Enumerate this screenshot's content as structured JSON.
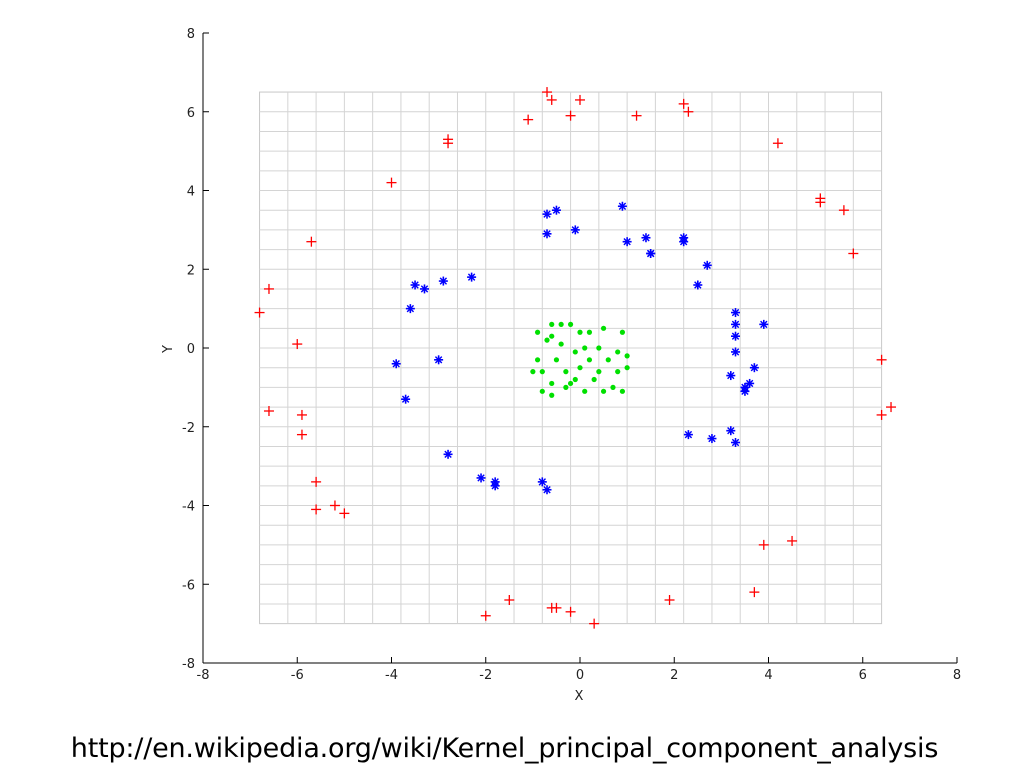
{
  "chart_data": {
    "type": "scatter",
    "title": "",
    "xlabel": "X",
    "ylabel": "Y",
    "xlim": [
      -8,
      8
    ],
    "ylim": [
      -8,
      8
    ],
    "xticks": [
      -8,
      -6,
      -4,
      -2,
      0,
      2,
      4,
      6,
      8
    ],
    "yticks": [
      -8,
      -6,
      -4,
      -2,
      0,
      2,
      4,
      6,
      8
    ],
    "grid": true,
    "grid_region_x": [
      -6.8,
      6.4
    ],
    "grid_region_y": [
      -7.0,
      6.5
    ],
    "series": [
      {
        "color": "#ff0000",
        "marker": "plus",
        "points": [
          [
            -0.7,
            6.5
          ],
          [
            -0.6,
            6.3
          ],
          [
            0.0,
            6.3
          ],
          [
            -1.1,
            5.8
          ],
          [
            -0.2,
            5.9
          ],
          [
            1.2,
            5.9
          ],
          [
            2.2,
            6.2
          ],
          [
            2.3,
            6.0
          ],
          [
            -2.8,
            5.3
          ],
          [
            -2.8,
            5.2
          ],
          [
            4.2,
            5.2
          ],
          [
            -4.0,
            4.2
          ],
          [
            5.1,
            3.7
          ],
          [
            5.1,
            3.8
          ],
          [
            5.6,
            3.5
          ],
          [
            -5.7,
            2.7
          ],
          [
            5.8,
            2.4
          ],
          [
            -6.6,
            1.5
          ],
          [
            -6.8,
            0.9
          ],
          [
            -6.0,
            0.1
          ],
          [
            6.4,
            -0.3
          ],
          [
            -6.6,
            -1.6
          ],
          [
            -5.9,
            -1.7
          ],
          [
            -5.9,
            -2.2
          ],
          [
            6.4,
            -1.7
          ],
          [
            6.6,
            -1.5
          ],
          [
            -5.6,
            -3.4
          ],
          [
            -5.6,
            -4.1
          ],
          [
            -5.2,
            -4.0
          ],
          [
            -5.0,
            -4.2
          ],
          [
            4.5,
            -4.9
          ],
          [
            3.9,
            -5.0
          ],
          [
            3.7,
            -6.2
          ],
          [
            -1.5,
            -6.4
          ],
          [
            1.9,
            -6.4
          ],
          [
            -0.6,
            -6.6
          ],
          [
            -0.5,
            -6.6
          ],
          [
            -0.2,
            -6.7
          ],
          [
            -2.0,
            -6.8
          ],
          [
            0.3,
            -7.0
          ]
        ]
      },
      {
        "color": "#0000ff",
        "marker": "star",
        "points": [
          [
            -0.5,
            3.5
          ],
          [
            -0.7,
            3.4
          ],
          [
            -0.7,
            2.9
          ],
          [
            -0.1,
            3.0
          ],
          [
            0.9,
            3.6
          ],
          [
            1.0,
            2.7
          ],
          [
            1.4,
            2.8
          ],
          [
            1.5,
            2.4
          ],
          [
            1.5,
            2.4
          ],
          [
            2.2,
            2.8
          ],
          [
            2.2,
            2.7
          ],
          [
            2.7,
            2.1
          ],
          [
            2.5,
            1.6
          ],
          [
            -2.3,
            1.8
          ],
          [
            -2.9,
            1.7
          ],
          [
            -3.5,
            1.6
          ],
          [
            -3.3,
            1.5
          ],
          [
            -3.6,
            1.0
          ],
          [
            -3.0,
            -0.3
          ],
          [
            -3.9,
            -0.4
          ],
          [
            -3.7,
            -1.3
          ],
          [
            3.3,
            0.9
          ],
          [
            3.3,
            0.6
          ],
          [
            3.9,
            0.6
          ],
          [
            3.3,
            0.3
          ],
          [
            3.3,
            -0.1
          ],
          [
            3.7,
            -0.5
          ],
          [
            3.2,
            -0.7
          ],
          [
            3.6,
            -0.9
          ],
          [
            3.5,
            -1.0
          ],
          [
            3.5,
            -1.1
          ],
          [
            3.2,
            -2.1
          ],
          [
            3.3,
            -2.4
          ],
          [
            2.8,
            -2.3
          ],
          [
            2.3,
            -2.2
          ],
          [
            -2.8,
            -2.7
          ],
          [
            -2.1,
            -3.3
          ],
          [
            -1.8,
            -3.4
          ],
          [
            -1.8,
            -3.5
          ],
          [
            -0.8,
            -3.4
          ],
          [
            -0.7,
            -3.6
          ]
        ]
      },
      {
        "color": "#00e000",
        "marker": "dot",
        "points": [
          [
            -0.6,
            0.6
          ],
          [
            -0.4,
            0.6
          ],
          [
            -0.2,
            0.6
          ],
          [
            0.5,
            0.5
          ],
          [
            0.9,
            0.4
          ],
          [
            -0.9,
            0.4
          ],
          [
            -0.6,
            0.3
          ],
          [
            0.0,
            0.4
          ],
          [
            0.2,
            0.4
          ],
          [
            -0.7,
            0.2
          ],
          [
            -0.4,
            0.1
          ],
          [
            0.1,
            0.0
          ],
          [
            0.4,
            0.0
          ],
          [
            -0.1,
            -0.1
          ],
          [
            0.8,
            -0.1
          ],
          [
            1.0,
            -0.2
          ],
          [
            -0.9,
            -0.3
          ],
          [
            -0.5,
            -0.3
          ],
          [
            0.2,
            -0.3
          ],
          [
            0.6,
            -0.3
          ],
          [
            -1.0,
            -0.6
          ],
          [
            -0.8,
            -0.6
          ],
          [
            -0.3,
            -0.6
          ],
          [
            0.0,
            -0.5
          ],
          [
            0.4,
            -0.6
          ],
          [
            0.8,
            -0.6
          ],
          [
            1.0,
            -0.5
          ],
          [
            -0.6,
            -0.9
          ],
          [
            -0.2,
            -0.9
          ],
          [
            0.3,
            -0.8
          ],
          [
            -0.8,
            -1.1
          ],
          [
            -0.6,
            -1.2
          ],
          [
            -0.3,
            -1.0
          ],
          [
            0.1,
            -1.1
          ],
          [
            0.7,
            -1.0
          ],
          [
            0.9,
            -1.1
          ],
          [
            -0.1,
            -0.8
          ],
          [
            0.5,
            -1.1
          ]
        ]
      }
    ]
  },
  "caption": {
    "source_url": "http://en.wikipedia.org/wiki/Kernel_principal_component_analysis"
  }
}
